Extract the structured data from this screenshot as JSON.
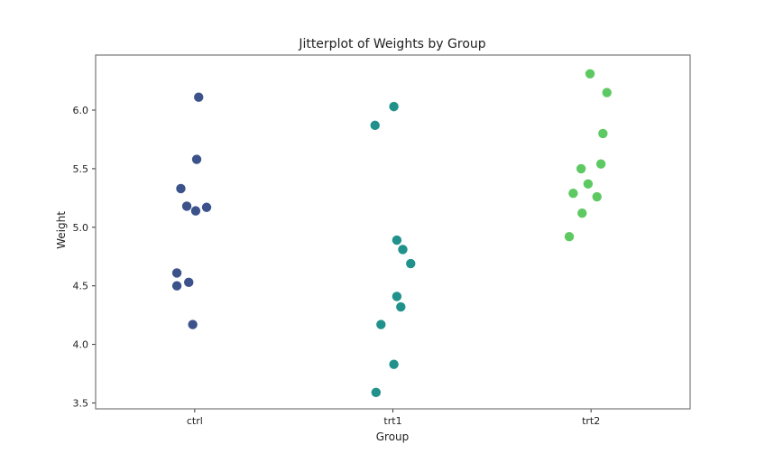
{
  "chart_data": {
    "type": "scatter",
    "title": "Jitterplot of Weights by Group",
    "xlabel": "Group",
    "ylabel": "Weight",
    "categories": [
      "ctrl",
      "trt1",
      "trt2"
    ],
    "xlim": [
      -0.5,
      2.5
    ],
    "ylim": [
      3.45,
      6.47
    ],
    "yticks": [
      "3.5",
      "4.0",
      "4.5",
      "5.0",
      "5.5",
      "6.0"
    ],
    "grid": false,
    "legend": "none",
    "series": [
      {
        "category": "ctrl",
        "color": "#3b528b",
        "x": [
          0.02,
          0.01,
          -0.07,
          -0.04,
          0.005,
          0.06,
          -0.09,
          -0.09,
          -0.03,
          -0.01
        ],
        "y": [
          6.11,
          5.58,
          5.33,
          5.18,
          5.14,
          5.17,
          4.61,
          4.5,
          4.53,
          4.17
        ]
      },
      {
        "category": "trt1",
        "color": "#21918c",
        "x": [
          1.005,
          0.91,
          1.02,
          1.05,
          1.09,
          1.02,
          1.04,
          0.94,
          1.005,
          0.915
        ],
        "y": [
          6.03,
          5.87,
          4.89,
          4.81,
          4.69,
          4.41,
          4.32,
          4.17,
          3.83,
          3.59
        ]
      },
      {
        "category": "trt2",
        "color": "#5ec962",
        "x": [
          1.995,
          2.08,
          2.06,
          2.05,
          1.95,
          1.985,
          1.91,
          2.03,
          1.955,
          1.89
        ],
        "y": [
          6.31,
          6.15,
          5.8,
          5.54,
          5.5,
          5.37,
          5.29,
          5.26,
          5.12,
          4.92
        ]
      }
    ]
  }
}
